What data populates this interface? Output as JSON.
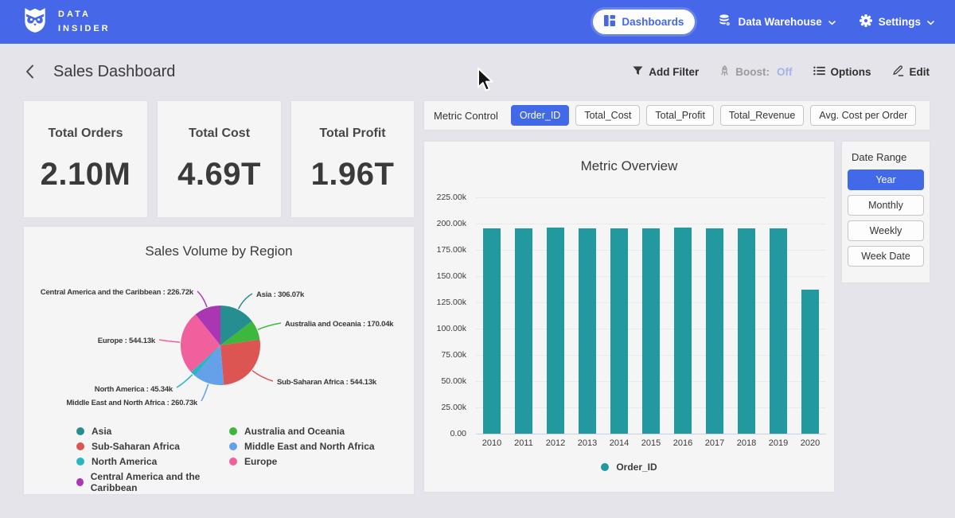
{
  "navbar": {
    "brand_line1": "DATA",
    "brand_line2": "INSIDER",
    "dashboards_label": "Dashboards",
    "data_warehouse_label": "Data Warehouse",
    "settings_label": "Settings"
  },
  "subheader": {
    "title": "Sales Dashboard",
    "add_filter_label": "Add Filter",
    "boost_label": "Boost:",
    "boost_value": "Off",
    "options_label": "Options",
    "edit_label": "Edit"
  },
  "kpis": [
    {
      "label": "Total Orders",
      "value": "2.10M"
    },
    {
      "label": "Total Cost",
      "value": "4.69T"
    },
    {
      "label": "Total Profit",
      "value": "1.96T"
    }
  ],
  "metric_control": {
    "label": "Metric Control",
    "options": [
      {
        "label": "Order_ID",
        "selected": true
      },
      {
        "label": "Total_Cost",
        "selected": false
      },
      {
        "label": "Total_Profit",
        "selected": false
      },
      {
        "label": "Total_Revenue",
        "selected": false
      },
      {
        "label": "Avg. Cost per Order",
        "selected": false
      }
    ]
  },
  "date_range": {
    "label": "Date Range",
    "options": [
      {
        "label": "Year",
        "selected": true
      },
      {
        "label": "Monthly",
        "selected": false
      },
      {
        "label": "Weekly",
        "selected": false
      },
      {
        "label": "Week Date",
        "selected": false
      }
    ]
  },
  "colors": {
    "navbar_blue": "#4667e7",
    "accent_blue": "#4169e8",
    "bar_teal": "#21999e",
    "boost_off": "#a6b3ea"
  },
  "chart_data": [
    {
      "type": "bar",
      "title": "Metric Overview",
      "categories": [
        "2010",
        "2011",
        "2012",
        "2013",
        "2014",
        "2015",
        "2016",
        "2017",
        "2018",
        "2019",
        "2020"
      ],
      "series": [
        {
          "name": "Order_ID",
          "color": "#21999e",
          "values": [
            195.6,
            195.5,
            196.6,
            195.5,
            195.4,
            195.5,
            196.6,
            195.6,
            195.5,
            195.5,
            137.2
          ]
        }
      ],
      "unit": "k",
      "xlabel": "",
      "ylabel": "",
      "ylim": [
        0,
        225
      ],
      "yticks": [
        {
          "value": 0,
          "label": "0.00"
        },
        {
          "value": 25,
          "label": "25.00k"
        },
        {
          "value": 50,
          "label": "50.00k"
        },
        {
          "value": 75,
          "label": "75.00k"
        },
        {
          "value": 100,
          "label": "100.00k"
        },
        {
          "value": 125,
          "label": "125.00k"
        },
        {
          "value": 150,
          "label": "150.00k"
        },
        {
          "value": 175,
          "label": "175.00k"
        },
        {
          "value": 200,
          "label": "200.00k"
        },
        {
          "value": 225,
          "label": "225.00k"
        }
      ],
      "grid": true,
      "legend": [
        "Order_ID"
      ],
      "legend_position": "bottom-center"
    },
    {
      "type": "pie",
      "title": "Sales Volume by Region",
      "slices": [
        {
          "name": "Asia",
          "value": 306.07,
          "label": "Asia : 306.07k",
          "color": "#268e90"
        },
        {
          "name": "Australia and Oceania",
          "value": 170.04,
          "label": "Australia and Oceania : 170.04k",
          "color": "#3cb93c"
        },
        {
          "name": "Sub-Saharan Africa",
          "value": 544.13,
          "label": "Sub-Saharan Africa : 544.13k",
          "color": "#dc5552"
        },
        {
          "name": "Middle East and North Africa",
          "value": 260.73,
          "label": "Middle East and North Africa : 260.73k",
          "color": "#64a1e9"
        },
        {
          "name": "North America",
          "value": 45.34,
          "label": "North America : 45.34k",
          "color": "#2ab5c4"
        },
        {
          "name": "Europe",
          "value": 544.13,
          "label": "Europe : 544.13k",
          "color": "#f0609c"
        },
        {
          "name": "Central America and the Caribbean",
          "value": 226.72,
          "label": "Central America and the Caribbean : 226.72k",
          "color": "#aa36b4"
        }
      ],
      "legend_order": [
        "Asia",
        "Australia and Oceania",
        "Sub-Saharan Africa",
        "Middle East and North Africa",
        "North America",
        "Europe",
        "Central America and the Caribbean"
      ],
      "legend_position": "bottom"
    }
  ]
}
